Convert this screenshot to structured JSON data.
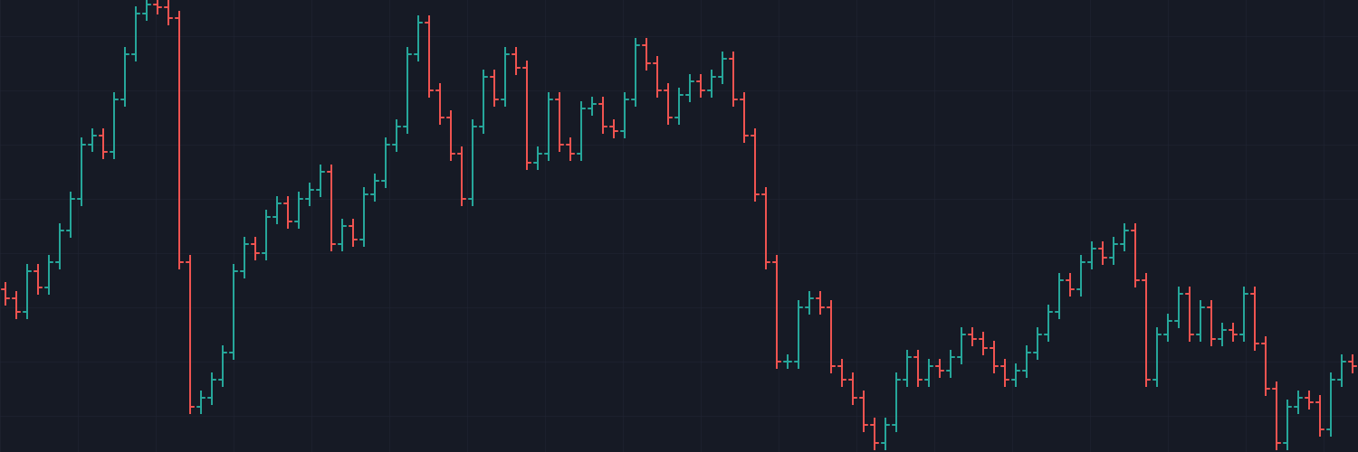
{
  "chart_data": {
    "type": "ohlc",
    "up_color": "#26a69a",
    "down_color": "#ef5350",
    "ylim": [
      0,
      500
    ],
    "open": [
      180,
      170,
      155,
      200,
      182,
      210,
      245,
      280,
      340,
      350,
      332,
      390,
      440,
      485,
      495,
      492,
      480,
      210,
      50,
      60,
      80,
      110,
      200,
      230,
      220,
      260,
      275,
      255,
      280,
      290,
      310,
      230,
      250,
      235,
      285,
      300,
      340,
      360,
      440,
      475,
      400,
      370,
      330,
      280,
      360,
      415,
      390,
      440,
      425,
      320,
      330,
      390,
      340,
      330,
      380,
      385,
      360,
      355,
      390,
      450,
      430,
      400,
      370,
      395,
      410,
      400,
      415,
      435,
      390,
      350,
      285,
      210,
      100,
      100,
      160,
      170,
      160,
      95,
      80,
      60,
      30,
      10,
      30,
      80,
      105,
      80,
      95,
      90,
      105,
      130,
      125,
      115,
      95,
      80,
      90,
      110,
      130,
      155,
      190,
      180,
      210,
      225,
      215,
      230,
      245,
      190,
      80,
      130,
      145,
      175,
      130,
      160,
      125,
      135,
      130,
      175,
      120,
      70,
      10,
      50,
      60,
      55,
      25,
      80,
      100
    ],
    "high": [
      188,
      178,
      208,
      208,
      218,
      253,
      288,
      348,
      358,
      358,
      398,
      448,
      493,
      503,
      503,
      500,
      488,
      218,
      68,
      88,
      118,
      208,
      238,
      238,
      268,
      283,
      283,
      288,
      298,
      318,
      318,
      258,
      258,
      293,
      308,
      348,
      368,
      448,
      483,
      483,
      408,
      378,
      338,
      368,
      423,
      423,
      448,
      448,
      433,
      338,
      398,
      398,
      348,
      388,
      393,
      393,
      368,
      398,
      458,
      458,
      438,
      408,
      403,
      418,
      418,
      423,
      443,
      443,
      398,
      358,
      293,
      218,
      108,
      168,
      178,
      178,
      168,
      103,
      88,
      68,
      38,
      38,
      88,
      113,
      113,
      103,
      103,
      113,
      138,
      138,
      133,
      123,
      103,
      98,
      118,
      138,
      163,
      198,
      198,
      218,
      233,
      233,
      238,
      253,
      253,
      198,
      138,
      153,
      183,
      183,
      168,
      168,
      143,
      143,
      183,
      183,
      128,
      78,
      58,
      68,
      68,
      63,
      88,
      108,
      108
    ],
    "low": [
      162,
      147,
      147,
      174,
      174,
      202,
      237,
      272,
      332,
      324,
      324,
      382,
      432,
      477,
      484,
      472,
      202,
      42,
      42,
      52,
      72,
      102,
      192,
      212,
      212,
      252,
      247,
      247,
      272,
      282,
      222,
      222,
      227,
      227,
      277,
      292,
      332,
      352,
      432,
      392,
      362,
      322,
      272,
      272,
      352,
      382,
      382,
      417,
      312,
      312,
      322,
      332,
      322,
      322,
      372,
      352,
      347,
      347,
      382,
      422,
      392,
      362,
      362,
      387,
      392,
      392,
      407,
      382,
      342,
      277,
      202,
      92,
      92,
      92,
      152,
      152,
      87,
      72,
      52,
      22,
      2,
      2,
      22,
      72,
      72,
      72,
      82,
      82,
      97,
      117,
      107,
      87,
      72,
      72,
      82,
      102,
      122,
      147,
      172,
      172,
      202,
      207,
      207,
      222,
      182,
      72,
      72,
      122,
      137,
      122,
      122,
      117,
      117,
      122,
      122,
      112,
      62,
      2,
      2,
      42,
      47,
      17,
      17,
      72,
      87
    ],
    "close": [
      170,
      155,
      200,
      182,
      210,
      245,
      280,
      340,
      350,
      332,
      390,
      440,
      485,
      495,
      492,
      480,
      210,
      50,
      60,
      80,
      110,
      200,
      230,
      220,
      260,
      275,
      255,
      280,
      290,
      310,
      230,
      250,
      235,
      285,
      300,
      340,
      360,
      440,
      475,
      400,
      370,
      330,
      280,
      360,
      415,
      390,
      440,
      425,
      320,
      330,
      390,
      340,
      330,
      380,
      385,
      360,
      355,
      390,
      450,
      430,
      400,
      370,
      395,
      410,
      400,
      415,
      435,
      390,
      350,
      285,
      210,
      100,
      100,
      160,
      170,
      160,
      95,
      80,
      60,
      30,
      10,
      30,
      80,
      105,
      80,
      95,
      90,
      105,
      130,
      125,
      115,
      95,
      80,
      90,
      110,
      130,
      155,
      190,
      180,
      210,
      225,
      215,
      230,
      245,
      190,
      80,
      130,
      145,
      175,
      130,
      160,
      125,
      135,
      130,
      175,
      120,
      70,
      10,
      50,
      60,
      55,
      25,
      80,
      100,
      95
    ]
  }
}
